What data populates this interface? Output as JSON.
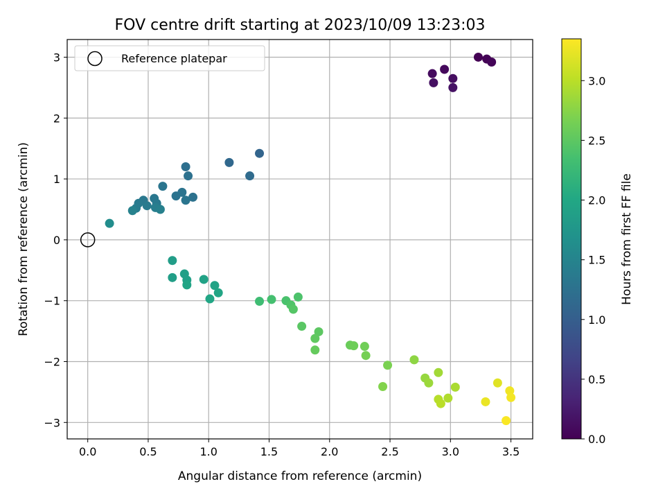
{
  "chart_data": {
    "type": "scatter",
    "title": "FOV centre drift starting at 2023/10/09 13:23:03",
    "xlabel": "Angular distance from reference (arcmin)",
    "ylabel": "Rotation from reference (arcmin)",
    "xlim": [
      -0.17,
      3.68
    ],
    "ylim": [
      -3.27,
      3.29
    ],
    "xticks": [
      0.0,
      0.5,
      1.0,
      1.5,
      2.0,
      2.5,
      3.0,
      3.5
    ],
    "yticks": [
      -3,
      -2,
      -1,
      0,
      1,
      2,
      3
    ],
    "xtick_labels": [
      "0.0",
      "0.5",
      "1.0",
      "1.5",
      "2.0",
      "2.5",
      "3.0",
      "3.5"
    ],
    "ytick_labels": [
      "−3",
      "−2",
      "−1",
      "0",
      "1",
      "2",
      "3"
    ],
    "grid": true,
    "legend": {
      "placement": "top-left",
      "entries": [
        "Reference platepar"
      ]
    },
    "reference_point": {
      "x": 0.0,
      "y": 0.0
    },
    "colorbar": {
      "label": "Hours from first FF file",
      "colormap": "viridis",
      "range": [
        0.0,
        3.35
      ],
      "ticks": [
        0.0,
        0.5,
        1.0,
        1.5,
        2.0,
        2.5,
        3.0
      ],
      "tick_labels": [
        "0.0",
        "0.5",
        "1.0",
        "1.5",
        "2.0",
        "2.5",
        "3.0"
      ]
    },
    "points": [
      {
        "x": 3.23,
        "y": 3.0,
        "c": 0.0
      },
      {
        "x": 3.3,
        "y": 2.97,
        "c": 0.02
      },
      {
        "x": 3.34,
        "y": 2.92,
        "c": 0.04
      },
      {
        "x": 2.95,
        "y": 2.8,
        "c": 0.08
      },
      {
        "x": 2.85,
        "y": 2.73,
        "c": 0.1
      },
      {
        "x": 3.02,
        "y": 2.65,
        "c": 0.12
      },
      {
        "x": 2.86,
        "y": 2.58,
        "c": 0.14
      },
      {
        "x": 3.02,
        "y": 2.5,
        "c": 0.16
      },
      {
        "x": 1.42,
        "y": 1.42,
        "c": 1.08
      },
      {
        "x": 1.17,
        "y": 1.27,
        "c": 1.12
      },
      {
        "x": 1.34,
        "y": 1.05,
        "c": 1.16
      },
      {
        "x": 0.81,
        "y": 1.2,
        "c": 1.22
      },
      {
        "x": 0.83,
        "y": 1.05,
        "c": 1.25
      },
      {
        "x": 0.62,
        "y": 0.88,
        "c": 1.3
      },
      {
        "x": 0.78,
        "y": 0.78,
        "c": 1.28
      },
      {
        "x": 0.73,
        "y": 0.72,
        "c": 1.27
      },
      {
        "x": 0.87,
        "y": 0.7,
        "c": 1.26
      },
      {
        "x": 0.81,
        "y": 0.65,
        "c": 1.3
      },
      {
        "x": 0.55,
        "y": 0.68,
        "c": 1.33
      },
      {
        "x": 0.46,
        "y": 0.65,
        "c": 1.34
      },
      {
        "x": 0.57,
        "y": 0.6,
        "c": 1.36
      },
      {
        "x": 0.42,
        "y": 0.6,
        "c": 1.37
      },
      {
        "x": 0.49,
        "y": 0.56,
        "c": 1.38
      },
      {
        "x": 0.4,
        "y": 0.52,
        "c": 1.4
      },
      {
        "x": 0.56,
        "y": 0.53,
        "c": 1.42
      },
      {
        "x": 0.6,
        "y": 0.5,
        "c": 1.45
      },
      {
        "x": 0.37,
        "y": 0.48,
        "c": 1.47
      },
      {
        "x": 0.18,
        "y": 0.27,
        "c": 1.62
      },
      {
        "x": 0.7,
        "y": -0.34,
        "c": 1.85
      },
      {
        "x": 0.8,
        "y": -0.56,
        "c": 1.88
      },
      {
        "x": 0.7,
        "y": -0.62,
        "c": 1.87
      },
      {
        "x": 0.82,
        "y": -0.66,
        "c": 1.9
      },
      {
        "x": 0.96,
        "y": -0.65,
        "c": 1.92
      },
      {
        "x": 0.82,
        "y": -0.74,
        "c": 1.95
      },
      {
        "x": 1.05,
        "y": -0.75,
        "c": 1.93
      },
      {
        "x": 1.08,
        "y": -0.87,
        "c": 1.96
      },
      {
        "x": 1.01,
        "y": -0.97,
        "c": 1.98
      },
      {
        "x": 1.42,
        "y": -1.01,
        "c": 2.3
      },
      {
        "x": 1.52,
        "y": -0.98,
        "c": 2.35
      },
      {
        "x": 1.64,
        "y": -1.0,
        "c": 2.38
      },
      {
        "x": 1.74,
        "y": -0.94,
        "c": 2.4
      },
      {
        "x": 1.68,
        "y": -1.07,
        "c": 2.42
      },
      {
        "x": 1.7,
        "y": -1.14,
        "c": 2.45
      },
      {
        "x": 1.77,
        "y": -1.42,
        "c": 2.48
      },
      {
        "x": 1.91,
        "y": -1.51,
        "c": 2.5
      },
      {
        "x": 1.88,
        "y": -1.62,
        "c": 2.52
      },
      {
        "x": 1.88,
        "y": -1.81,
        "c": 2.55
      },
      {
        "x": 2.17,
        "y": -1.73,
        "c": 2.58
      },
      {
        "x": 2.2,
        "y": -1.74,
        "c": 2.6
      },
      {
        "x": 2.29,
        "y": -1.75,
        "c": 2.62
      },
      {
        "x": 2.3,
        "y": -1.9,
        "c": 2.65
      },
      {
        "x": 2.48,
        "y": -2.06,
        "c": 2.68
      },
      {
        "x": 2.44,
        "y": -2.41,
        "c": 2.72
      },
      {
        "x": 2.7,
        "y": -1.97,
        "c": 2.78
      },
      {
        "x": 2.79,
        "y": -2.27,
        "c": 2.82
      },
      {
        "x": 2.82,
        "y": -2.35,
        "c": 2.85
      },
      {
        "x": 2.9,
        "y": -2.18,
        "c": 2.88
      },
      {
        "x": 3.04,
        "y": -2.42,
        "c": 2.92
      },
      {
        "x": 2.98,
        "y": -2.6,
        "c": 2.95
      },
      {
        "x": 2.9,
        "y": -2.62,
        "c": 2.98
      },
      {
        "x": 2.92,
        "y": -2.69,
        "c": 3.0
      },
      {
        "x": 3.39,
        "y": -2.35,
        "c": 3.2
      },
      {
        "x": 3.49,
        "y": -2.48,
        "c": 3.28
      },
      {
        "x": 3.5,
        "y": -2.59,
        "c": 3.3
      },
      {
        "x": 3.29,
        "y": -2.66,
        "c": 3.25
      },
      {
        "x": 3.46,
        "y": -2.97,
        "c": 3.33
      }
    ]
  }
}
